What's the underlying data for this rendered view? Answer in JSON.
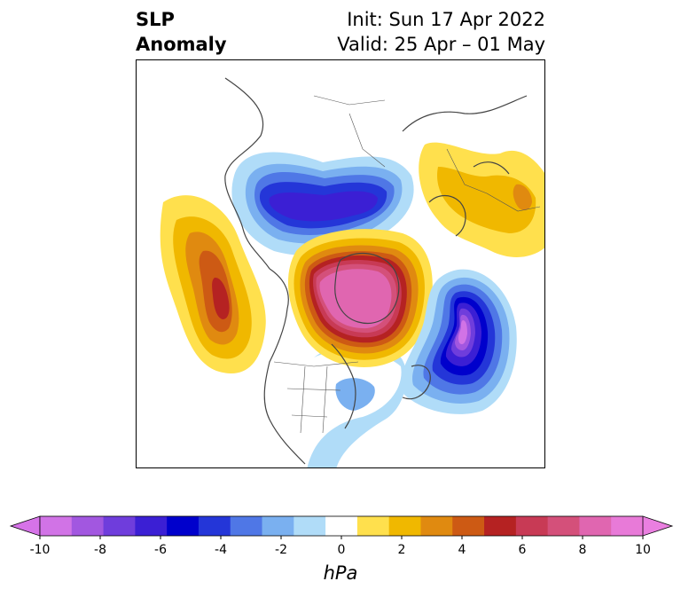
{
  "title": {
    "left_line1": "SLP",
    "left_line2": "Anomaly",
    "right_line1": "Init: Sun 17 Apr 2022",
    "right_line2": "Valid: 25 Apr – 01 May"
  },
  "colorbar": {
    "unit": "hPa",
    "tick_labels": [
      "-10",
      "-8",
      "-6",
      "-4",
      "-2",
      "0",
      "2",
      "4",
      "6",
      "8",
      "10"
    ],
    "levels": [
      -10,
      -9,
      -8,
      -7,
      -6,
      -5,
      -4,
      -3,
      -2,
      -1,
      1,
      2,
      3,
      4,
      5,
      6,
      7,
      8,
      9,
      10
    ],
    "colors": [
      "#d173e6",
      "#a257e0",
      "#6f3ddc",
      "#3b1fd4",
      "#0000cc",
      "#2436d8",
      "#4f77e6",
      "#7ab0f0",
      "#b0dcf8",
      "#ffffff",
      "#ffe04d",
      "#f0b800",
      "#e08a10",
      "#cd5a14",
      "#b52222",
      "#c83a55",
      "#d4507a",
      "#e066b0",
      "#e87ad8"
    ],
    "min_color": "#d673e8",
    "max_color": "#ea7fe0"
  },
  "map": {
    "anomaly_centers": [
      {
        "label": "high-greenland-arctic",
        "sign": "positive"
      },
      {
        "label": "high-north-pacific",
        "sign": "positive"
      },
      {
        "label": "high-scandinavia",
        "sign": "positive"
      },
      {
        "label": "low-north-atlantic",
        "sign": "negative"
      },
      {
        "label": "low-siberia",
        "sign": "negative"
      },
      {
        "label": "low-eastern-us",
        "sign": "negative"
      }
    ]
  }
}
